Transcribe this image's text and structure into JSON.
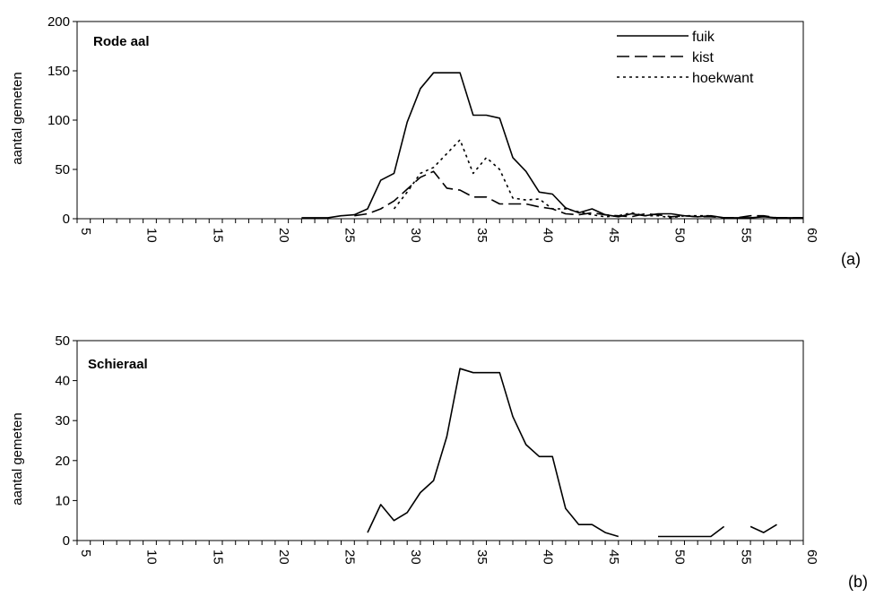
{
  "chart_data": [
    {
      "type": "line",
      "panel": "a",
      "title": "Rode aal",
      "panel_label": "(a)",
      "xlabel": "",
      "ylabel": "aantal gemeten",
      "xlim": [
        5,
        60
      ],
      "ylim": [
        0,
        200
      ],
      "xticks": [
        5,
        10,
        15,
        20,
        25,
        30,
        35,
        40,
        45,
        50,
        55,
        60
      ],
      "yticks": [
        0,
        50,
        100,
        150,
        200
      ],
      "legend_position": "top-right",
      "series": [
        {
          "name": "fuik",
          "style": "solid",
          "x": [
            22,
            23,
            24,
            25,
            26,
            27,
            28,
            29,
            30,
            31,
            32,
            33,
            34,
            35,
            36,
            37,
            38,
            39,
            40,
            41,
            42,
            43,
            44,
            45,
            46,
            47,
            48,
            49,
            50,
            51,
            52,
            53,
            54,
            55,
            56,
            57,
            58,
            59,
            60
          ],
          "y": [
            1,
            1,
            1,
            3,
            4,
            10,
            39,
            46,
            98,
            132,
            148,
            148,
            148,
            105,
            105,
            102,
            62,
            48,
            27,
            25,
            11,
            6,
            10,
            4,
            2,
            5,
            3,
            5,
            5,
            3,
            2,
            3,
            1,
            1,
            1,
            2,
            1,
            1,
            1
          ]
        },
        {
          "name": "kist",
          "style": "dashed",
          "x": [
            26,
            27,
            28,
            29,
            30,
            31,
            32,
            33,
            34,
            35,
            36,
            37,
            38,
            39,
            40,
            41,
            42,
            43,
            44,
            45,
            46,
            47,
            48,
            49,
            50,
            51,
            52,
            53,
            54,
            55,
            56,
            57,
            58,
            59,
            60
          ],
          "y": [
            3,
            5,
            10,
            18,
            30,
            42,
            48,
            31,
            29,
            22,
            22,
            15,
            15,
            15,
            12,
            10,
            5,
            4,
            6,
            4,
            3,
            2,
            5,
            4,
            2,
            3,
            2,
            2,
            1,
            1,
            3,
            3,
            1,
            1,
            1
          ]
        },
        {
          "name": "hoekwant",
          "style": "dotted",
          "x": [
            29,
            30,
            31,
            32,
            33,
            34,
            35,
            36,
            37,
            38,
            39,
            40,
            41,
            42,
            43,
            44,
            45,
            46,
            47,
            48,
            49,
            50,
            51,
            52,
            53
          ],
          "y": [
            10,
            27,
            46,
            52,
            66,
            80,
            46,
            62,
            50,
            21,
            19,
            20,
            10,
            10,
            7,
            4,
            2,
            3,
            6,
            3,
            3,
            1,
            3,
            3,
            3
          ]
        }
      ]
    },
    {
      "type": "line",
      "panel": "b",
      "title": "Schieraal",
      "panel_label": "(b)",
      "xlabel": "",
      "ylabel": "aantal gemeten",
      "xlim": [
        5,
        60
      ],
      "ylim": [
        0,
        50
      ],
      "xticks": [
        5,
        10,
        15,
        20,
        25,
        30,
        35,
        40,
        45,
        50,
        55,
        60
      ],
      "yticks": [
        0,
        10,
        20,
        30,
        40,
        50
      ],
      "series": [
        {
          "name": "",
          "style": "solid",
          "segments": [
            {
              "x": [
                27,
                28,
                29,
                30,
                31,
                32,
                33,
                34,
                35,
                36,
                37,
                38,
                39,
                40,
                41,
                42,
                43,
                44,
                45,
                46
              ],
              "y": [
                2,
                9,
                5,
                7,
                12,
                15,
                26,
                43,
                42,
                42,
                42,
                31,
                24,
                21,
                21,
                8,
                4,
                4,
                2,
                1
              ]
            },
            {
              "x": [
                49,
                50,
                51,
                52,
                53,
                54
              ],
              "y": [
                1,
                1,
                1,
                1,
                1,
                3.5
              ]
            },
            {
              "x": [
                56,
                57,
                58
              ],
              "y": [
                3.5,
                2,
                4
              ]
            }
          ]
        }
      ]
    }
  ]
}
